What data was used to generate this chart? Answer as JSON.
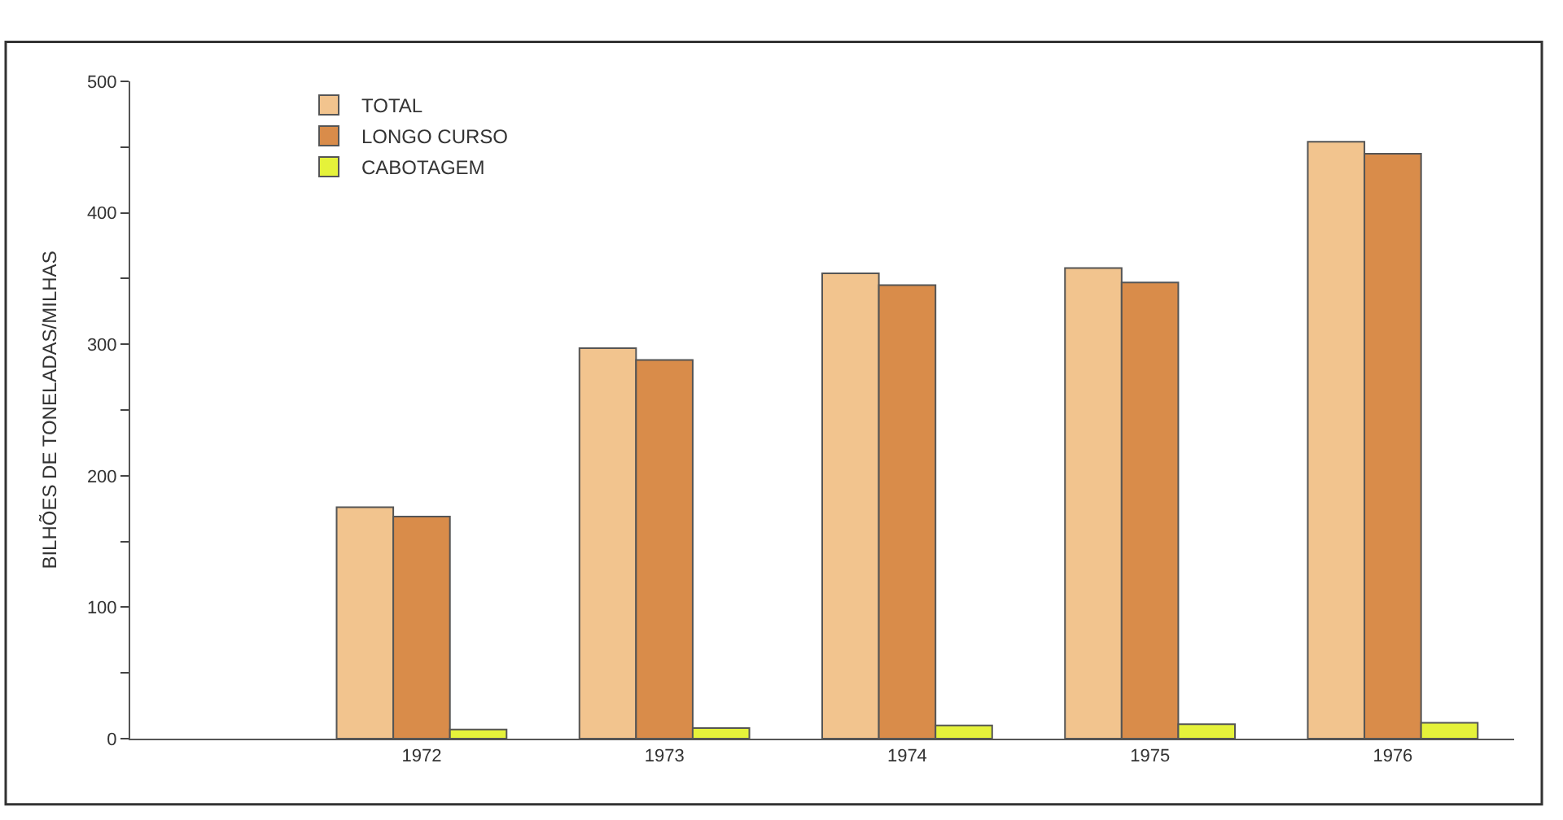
{
  "chart_data": {
    "type": "bar",
    "ylabel": "BILHÕES DE TONELADAS/MILHAS",
    "categories": [
      "1972",
      "1973",
      "1974",
      "1975",
      "1976"
    ],
    "series": [
      {
        "name": "TOTAL",
        "color": "#f2c48e",
        "values": [
          176,
          297,
          354,
          358,
          454
        ]
      },
      {
        "name": "LONGO CURSO",
        "color": "#d98c4a",
        "values": [
          169,
          288,
          345,
          347,
          445
        ]
      },
      {
        "name": "CABOTAGEM",
        "color": "#e5f23a",
        "values": [
          7,
          8,
          10,
          11,
          12
        ]
      }
    ],
    "ylim": [
      0,
      500
    ],
    "yticks": [
      0,
      {
        "value": 50,
        "label": null
      },
      100,
      {
        "value": 150,
        "label": null
      },
      200,
      {
        "value": 250,
        "label": null
      },
      300,
      {
        "value": 350,
        "label": null
      },
      400,
      {
        "value": 450,
        "label": null
      },
      500
    ],
    "grid": false,
    "legend": "top left"
  }
}
